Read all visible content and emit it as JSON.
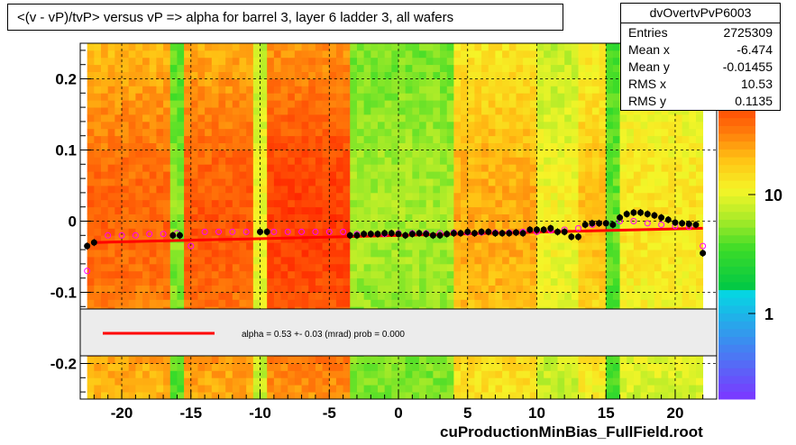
{
  "title": "<(v - vP)/tvP> versus   vP => alpha for barrel 3, layer 6 ladder 3, all wafers",
  "stats": {
    "name": "dvOvertvPvP6003",
    "rows": [
      {
        "key": "Entries",
        "value": "2725309"
      },
      {
        "key": "Mean x",
        "value": "-6.474"
      },
      {
        "key": "Mean y",
        "value": "-0.01455"
      },
      {
        "key": "RMS x",
        "value": "10.53"
      },
      {
        "key": "RMS y",
        "value": "0.1135"
      }
    ]
  },
  "fit_legend": "alpha =    0.53 +-  0.03 (mrad) prob = 0.000",
  "footer": "cuProductionMinBias_FullField.root",
  "colors": {
    "fit_line": "#ff0000",
    "profile_marker": "#000000",
    "open_marker": "#ff00ff"
  },
  "chart_data": {
    "type": "heatmap",
    "xlim": [
      -23,
      23
    ],
    "ylim": [
      -0.25,
      0.25
    ],
    "x_ticks": [
      -20,
      -15,
      -10,
      -5,
      0,
      5,
      10,
      15,
      20
    ],
    "x_tick_labels": [
      "-20",
      "-15",
      "-10",
      "-5",
      "0",
      "5",
      "10",
      "15",
      "20"
    ],
    "y_ticks": [
      -0.2,
      -0.1,
      0,
      0.1,
      0.2
    ],
    "y_tick_labels": [
      "-0.2",
      "-0.1",
      "0",
      "0.1",
      "0.2"
    ],
    "grid": true,
    "z_scale": "log",
    "z_tick_labels": [
      "1",
      "10"
    ],
    "fit": {
      "x": [
        -22,
        22
      ],
      "y": [
        -0.03,
        -0.01
      ]
    },
    "profile_points": {
      "x": [
        -22.5,
        -22,
        -16.3,
        -15.8,
        -10,
        -9.5,
        -3.5,
        -3,
        -2.5,
        -2,
        -1.5,
        -1,
        -0.5,
        0,
        0.5,
        1,
        1.5,
        2,
        2.5,
        3,
        3.5,
        4,
        4.5,
        5,
        5.5,
        6,
        6.5,
        7,
        7.5,
        8,
        8.5,
        9,
        9.5,
        10,
        10.5,
        11,
        11.5,
        12,
        12.5,
        13,
        13.5,
        14,
        14.5,
        15,
        15.5,
        16,
        16.5,
        17,
        17.5,
        18,
        18.5,
        19,
        19.5,
        20,
        20.5,
        21,
        21.5,
        22
      ],
      "y": [
        -0.035,
        -0.03,
        -0.02,
        -0.02,
        -0.015,
        -0.015,
        -0.02,
        -0.02,
        -0.018,
        -0.018,
        -0.018,
        -0.017,
        -0.017,
        -0.018,
        -0.02,
        -0.018,
        -0.017,
        -0.018,
        -0.02,
        -0.02,
        -0.018,
        -0.017,
        -0.017,
        -0.015,
        -0.017,
        -0.015,
        -0.015,
        -0.017,
        -0.017,
        -0.017,
        -0.016,
        -0.017,
        -0.012,
        -0.012,
        -0.012,
        -0.01,
        -0.015,
        -0.015,
        -0.022,
        -0.022,
        -0.005,
        -0.003,
        -0.003,
        -0.003,
        -0.005,
        0.005,
        0.01,
        0.012,
        0.012,
        0.01,
        0.008,
        0.005,
        0.002,
        -0.002,
        -0.003,
        -0.004,
        -0.005,
        -0.045
      ]
    },
    "open_points": {
      "x": [
        -22.5,
        -21,
        -20,
        -19,
        -18,
        -17,
        -16,
        -15,
        -14,
        -13,
        -12,
        -11,
        -10,
        -9,
        -8,
        -7,
        -6,
        -5,
        -4,
        -3,
        -2,
        -1,
        0,
        1,
        2,
        3,
        4,
        5,
        6,
        7,
        8,
        9,
        10,
        11,
        12,
        13,
        14,
        15,
        16,
        17,
        18,
        19,
        20,
        21,
        22
      ],
      "y": [
        -0.07,
        -0.02,
        -0.02,
        -0.02,
        -0.018,
        -0.018,
        -0.017,
        -0.035,
        -0.015,
        -0.015,
        -0.015,
        -0.015,
        -0.015,
        -0.015,
        -0.015,
        -0.015,
        -0.015,
        -0.015,
        -0.015,
        -0.018,
        -0.018,
        -0.018,
        -0.017,
        -0.017,
        -0.017,
        -0.017,
        -0.016,
        -0.016,
        -0.016,
        -0.016,
        -0.016,
        -0.015,
        -0.015,
        -0.013,
        -0.012,
        -0.01,
        -0.005,
        -0.003,
        0.0,
        0.0,
        -0.003,
        -0.005,
        -0.007,
        -0.008,
        -0.035
      ]
    },
    "columns": [
      {
        "x0": -22.5,
        "x1": -16.5,
        "level": 0.85
      },
      {
        "x0": -16.5,
        "x1": -15.5,
        "level": 0.3
      },
      {
        "x0": -15.5,
        "x1": -10.5,
        "level": 0.88
      },
      {
        "x0": -10.5,
        "x1": -9.5,
        "level": 0.5
      },
      {
        "x0": -9.5,
        "x1": -3.5,
        "level": 0.95
      },
      {
        "x0": -3.5,
        "x1": 4.0,
        "level": 0.35
      },
      {
        "x0": 4.0,
        "x1": 10.0,
        "level": 0.7
      },
      {
        "x0": 10.0,
        "x1": 13.0,
        "level": 0.5
      },
      {
        "x0": 13.0,
        "x1": 15.0,
        "level": 0.65
      },
      {
        "x0": 15.0,
        "x1": 16.0,
        "level": 0.25
      },
      {
        "x0": 16.0,
        "x1": 22.0,
        "level": 0.55
      }
    ]
  }
}
